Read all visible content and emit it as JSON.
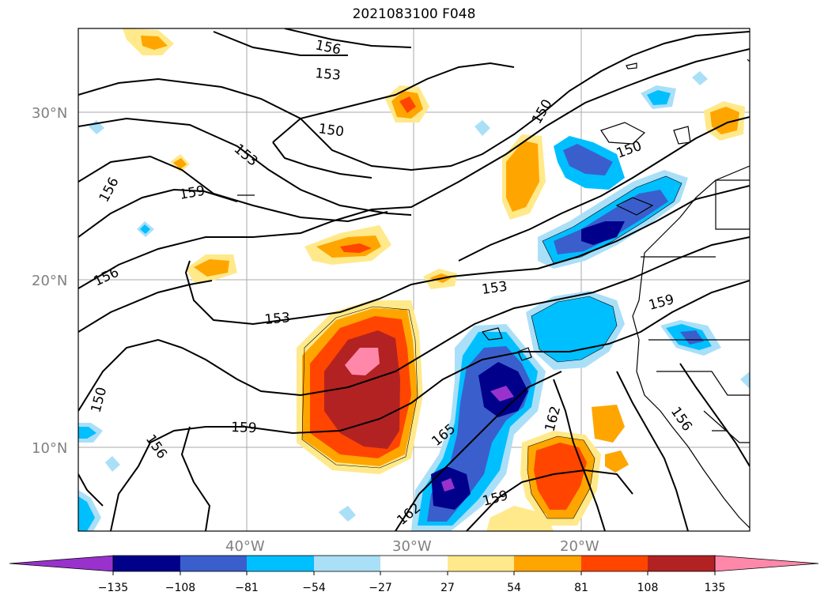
{
  "title": "2021083100 F048",
  "map": {
    "lat_labels": [
      {
        "text": "30°N",
        "lat": 30
      },
      {
        "text": "20°N",
        "lat": 20
      },
      {
        "text": "10°N",
        "lat": 10
      }
    ],
    "lon_labels": [
      {
        "text": "40°W",
        "lon": -40
      },
      {
        "text": "30°W",
        "lon": -30
      },
      {
        "text": "20°W",
        "lon": -20
      }
    ],
    "extent": {
      "lon_min": -50,
      "lon_max": -10,
      "lat_min": 5,
      "lat_max": 35
    },
    "contour_labels": [
      "156",
      "153",
      "150",
      "153",
      "156",
      "159",
      "150",
      "156",
      "153",
      "153",
      "150",
      "159",
      "150",
      "156",
      "159",
      "165",
      "162",
      "162",
      "159",
      "156"
    ]
  },
  "colorbar": {
    "ticks": [
      "−135",
      "−108",
      "−81",
      "−54",
      "−27",
      "27",
      "54",
      "81",
      "108",
      "135"
    ],
    "colors": [
      "#9932cc",
      "#00008b",
      "#3a5fcd",
      "#00bfff",
      "#aadff8",
      "#ffffff",
      "#ffe98a",
      "#ffa500",
      "#ff4500",
      "#b22222",
      "#ff88aa"
    ]
  }
}
